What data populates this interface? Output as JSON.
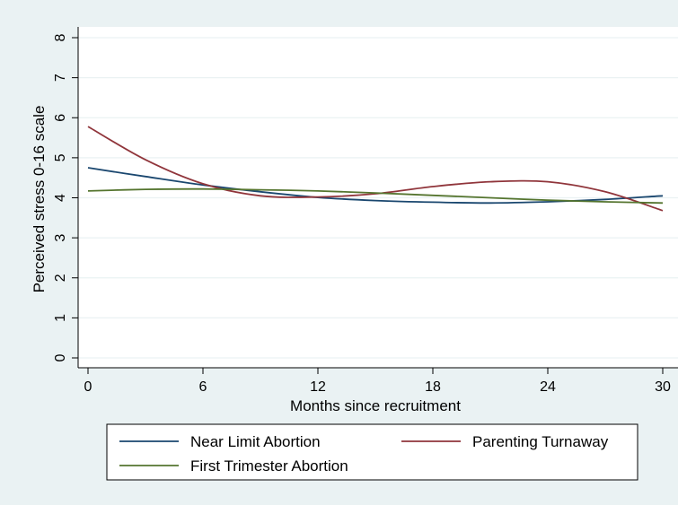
{
  "chart_data": {
    "type": "line",
    "title": "",
    "xlabel": "Months since recruitment",
    "ylabel": "Perceived stress 0-16 scale",
    "xlim": [
      0,
      30
    ],
    "ylim": [
      0,
      8
    ],
    "x_ticks": [
      0,
      6,
      12,
      18,
      24,
      30
    ],
    "y_ticks": [
      0,
      1,
      2,
      3,
      4,
      5,
      6,
      7,
      8
    ],
    "grid": "horizontal",
    "legend_position": "bottom",
    "x": [
      0,
      3,
      6,
      9,
      12,
      15,
      18,
      21,
      24,
      27,
      30
    ],
    "series": [
      {
        "name": "Near Limit Abortion",
        "color": "#1a476f",
        "values": [
          4.75,
          4.53,
          4.32,
          4.15,
          4.01,
          3.93,
          3.89,
          3.87,
          3.9,
          3.96,
          4.05
        ]
      },
      {
        "name": "Parenting Turnaway",
        "color": "#90353b",
        "values": [
          5.78,
          4.95,
          4.35,
          4.05,
          4.02,
          4.1,
          4.28,
          4.4,
          4.4,
          4.15,
          3.68
        ]
      },
      {
        "name": "First Trimester Abortion",
        "color": "#55752f",
        "values": [
          4.17,
          4.21,
          4.22,
          4.2,
          4.17,
          4.12,
          4.06,
          4.0,
          3.94,
          3.9,
          3.87
        ]
      }
    ]
  }
}
